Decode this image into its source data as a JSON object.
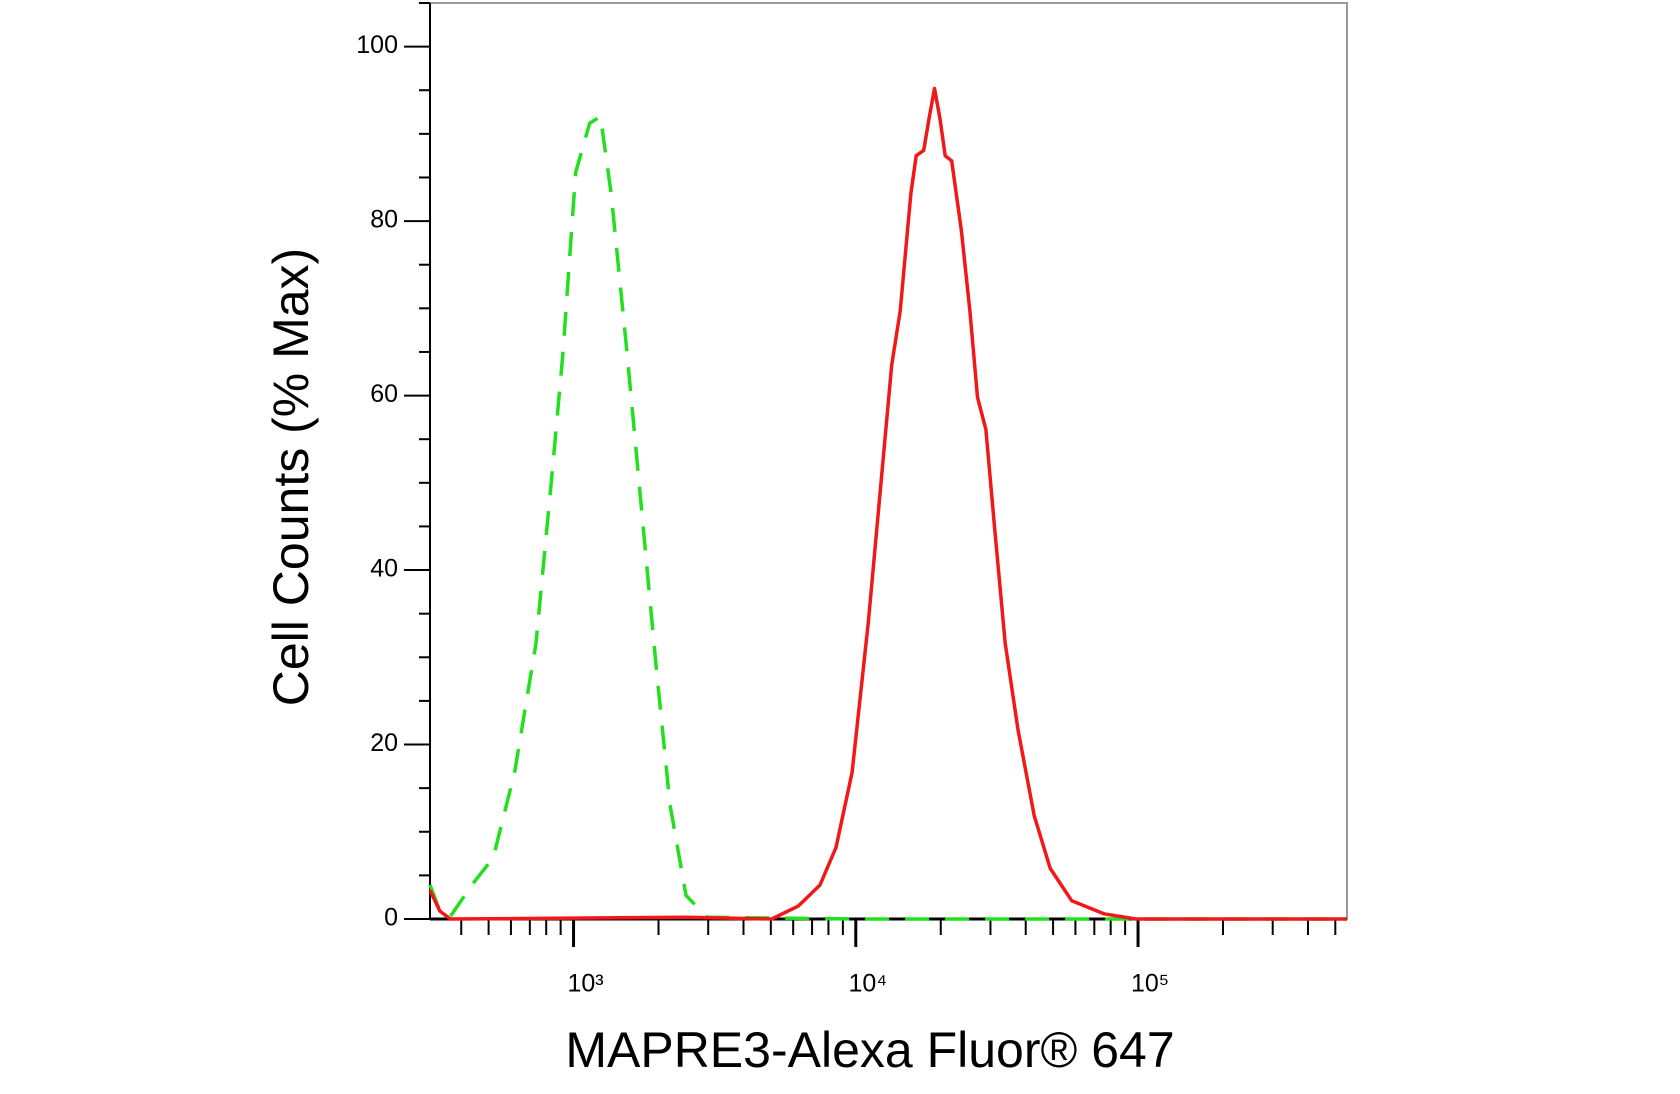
{
  "chart_data": {
    "type": "line",
    "xlabel": "MAPRE3-Alexa Fluor® 647",
    "ylabel": "Cell Counts (% Max)",
    "xscale": "log",
    "xlim": [
      310,
      550000
    ],
    "ylim": [
      0,
      105
    ],
    "xticks": [
      {
        "value": 1000,
        "label": "10³"
      },
      {
        "value": 10000,
        "label": "10⁴"
      },
      {
        "value": 100000,
        "label": "10⁵"
      }
    ],
    "xminorticks": [
      400,
      500,
      600,
      700,
      800,
      900,
      2000,
      3000,
      4000,
      5000,
      6000,
      7000,
      8000,
      9000,
      20000,
      30000,
      40000,
      50000,
      60000,
      70000,
      80000,
      90000,
      200000,
      300000,
      400000,
      500000
    ],
    "yticks": [
      0,
      20,
      40,
      60,
      80,
      100
    ],
    "yminorticks": [
      5,
      10,
      15,
      25,
      30,
      35,
      45,
      50,
      55,
      65,
      70,
      75,
      85,
      90,
      95,
      105
    ],
    "series": [
      {
        "color": "#22e01e",
        "dashed": true,
        "x": [
          310,
          336,
          366,
          436,
          519,
          618,
          736,
          840,
          916,
          1018,
          1140,
          1245,
          1358,
          1549,
          1735,
          1960,
          2196,
          2502,
          2978,
          10140,
          58200,
          549500
        ],
        "values": [
          3.9,
          0.9,
          0.3,
          3.9,
          7,
          16.8,
          31.6,
          51.2,
          64.7,
          85.6,
          91.2,
          92,
          83.2,
          64.7,
          47.5,
          29.1,
          13.1,
          2.7,
          0.2,
          0,
          0,
          0
        ]
      },
      {
        "color": "#f01818",
        "dashed": false,
        "x": [
          310,
          336,
          366,
          2502,
          5035,
          6266,
          7466,
          8511,
          9705,
          11070,
          12280,
          13400,
          14360,
          15670,
          16370,
          17400,
          18190,
          19000,
          19860,
          20740,
          21870,
          23660,
          25360,
          26980,
          28910,
          30980,
          33820,
          37550,
          42830,
          48840,
          58200,
          75680,
          98250,
          549500
        ],
        "values": [
          3.3,
          0.9,
          0,
          0.2,
          0,
          1.5,
          3.9,
          8.2,
          16.8,
          34,
          50,
          63.5,
          69.7,
          83.2,
          87.5,
          88.1,
          91.8,
          95.2,
          91.8,
          87.5,
          86.9,
          78.9,
          69.7,
          59.8,
          56.1,
          45.1,
          31.6,
          21.7,
          11.9,
          5.8,
          2.1,
          0.6,
          0,
          0
        ]
      }
    ]
  }
}
